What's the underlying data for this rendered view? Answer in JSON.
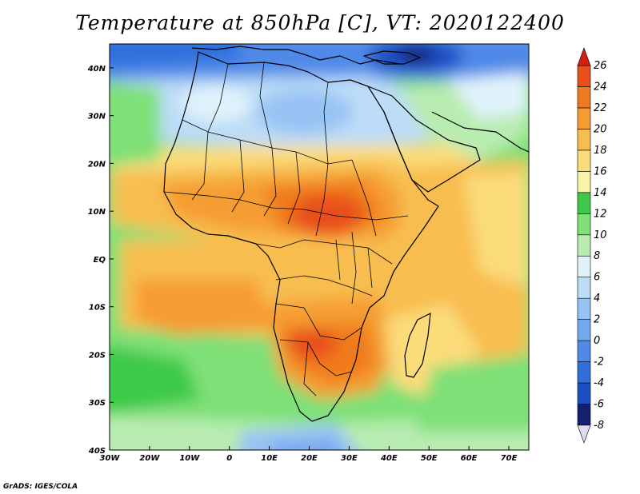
{
  "title": "Temperature at 850hPa [C], VT: 2020122400",
  "credit": "GrADS: IGES/COLA",
  "map": {
    "lon_range": [
      -30,
      75
    ],
    "lat_range": [
      -40,
      45
    ],
    "lon_ticks": [
      {
        "value": -30,
        "label": "30W"
      },
      {
        "value": -20,
        "label": "20W"
      },
      {
        "value": -10,
        "label": "10W"
      },
      {
        "value": 0,
        "label": "0"
      },
      {
        "value": 10,
        "label": "10E"
      },
      {
        "value": 20,
        "label": "20E"
      },
      {
        "value": 30,
        "label": "30E"
      },
      {
        "value": 40,
        "label": "40E"
      },
      {
        "value": 50,
        "label": "50E"
      },
      {
        "value": 60,
        "label": "60E"
      },
      {
        "value": 70,
        "label": "70E"
      }
    ],
    "lat_ticks": [
      {
        "value": 40,
        "label": "40N"
      },
      {
        "value": 30,
        "label": "30N"
      },
      {
        "value": 20,
        "label": "20N"
      },
      {
        "value": 10,
        "label": "10N"
      },
      {
        "value": 0,
        "label": "EQ"
      },
      {
        "value": -10,
        "label": "10S"
      },
      {
        "value": -20,
        "label": "20S"
      },
      {
        "value": -30,
        "label": "30S"
      },
      {
        "value": -40,
        "label": "40S"
      }
    ]
  },
  "colorbar": {
    "bins": [
      {
        "low": -8,
        "high": -6,
        "color": "#14206e"
      },
      {
        "low": -6,
        "high": -4,
        "color": "#1d4fc4"
      },
      {
        "low": -4,
        "high": -2,
        "color": "#2f6fdc"
      },
      {
        "low": -2,
        "high": 0,
        "color": "#4f8ae8"
      },
      {
        "low": 0,
        "high": 2,
        "color": "#73a7f0"
      },
      {
        "low": 2,
        "high": 4,
        "color": "#97c3f4"
      },
      {
        "low": 4,
        "high": 6,
        "color": "#bcdcf8"
      },
      {
        "low": 6,
        "high": 8,
        "color": "#e0f3fb"
      },
      {
        "low": 8,
        "high": 10,
        "color": "#b8ecb0"
      },
      {
        "low": 10,
        "high": 12,
        "color": "#7ee077"
      },
      {
        "low": 12,
        "high": 14,
        "color": "#3ec94a"
      },
      {
        "low": 14,
        "high": 16,
        "color": "#f7f4a8"
      },
      {
        "low": 16,
        "high": 18,
        "color": "#fbdc7a"
      },
      {
        "low": 18,
        "high": 20,
        "color": "#f8bd50"
      },
      {
        "low": 20,
        "high": 22,
        "color": "#f59d32"
      },
      {
        "low": 22,
        "high": 24,
        "color": "#f07a1e"
      },
      {
        "low": 24,
        "high": 26,
        "color": "#e8501a"
      }
    ],
    "over_color": "#d41e12",
    "under_color": "#dcdcf0",
    "labels": [
      "26",
      "24",
      "22",
      "20",
      "18",
      "16",
      "14",
      "12",
      "10",
      "8",
      "6",
      "4",
      "2",
      "0",
      "-2",
      "-4",
      "-6",
      "-8"
    ]
  }
}
